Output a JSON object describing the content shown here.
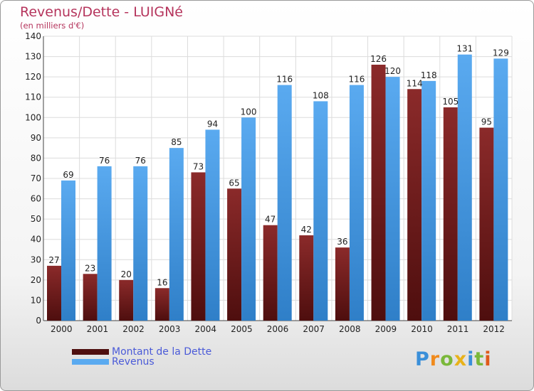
{
  "header": {
    "title": "Revenus/Dette - LUIGNé",
    "subtitle": "(en milliers d'€)"
  },
  "legend": {
    "debt_label": "Montant de la Dette",
    "revenue_label": "Revenus"
  },
  "brand": {
    "letters": [
      "P",
      "r",
      "o",
      "x",
      "i",
      "t",
      "i"
    ],
    "letter_colors": [
      "#3a8fd9",
      "#f08a1c",
      "#7ab83a",
      "#e8b21a",
      "#3a8fd9",
      "#7ab83a",
      "#e05a1a"
    ]
  },
  "colors": {
    "debt_top": "#8b2a2a",
    "debt_bottom": "#4e0e0e",
    "revenue_top": "#5aaaf0",
    "revenue_bottom": "#2f7fc8",
    "title": "#b5345c",
    "legend_text": "#4a5ad8"
  },
  "chart_data": {
    "type": "bar",
    "title": "Revenus/Dette - LUIGNé",
    "subtitle": "(en milliers d'€)",
    "categories": [
      "2000",
      "2001",
      "2002",
      "2003",
      "2004",
      "2005",
      "2006",
      "2007",
      "2008",
      "2009",
      "2010",
      "2011",
      "2012"
    ],
    "series": [
      {
        "name": "Montant de la Dette",
        "values": [
          27,
          23,
          20,
          16,
          73,
          65,
          47,
          42,
          36,
          126,
          114,
          105,
          95
        ]
      },
      {
        "name": "Revenus",
        "values": [
          69,
          76,
          76,
          85,
          94,
          100,
          116,
          108,
          116,
          120,
          118,
          131,
          129
        ]
      }
    ],
    "ylim": [
      0,
      140
    ],
    "yticks": [
      0,
      10,
      20,
      30,
      40,
      50,
      60,
      70,
      80,
      90,
      100,
      110,
      120,
      130,
      140
    ],
    "grid": true,
    "legend_position": "bottom-left"
  }
}
